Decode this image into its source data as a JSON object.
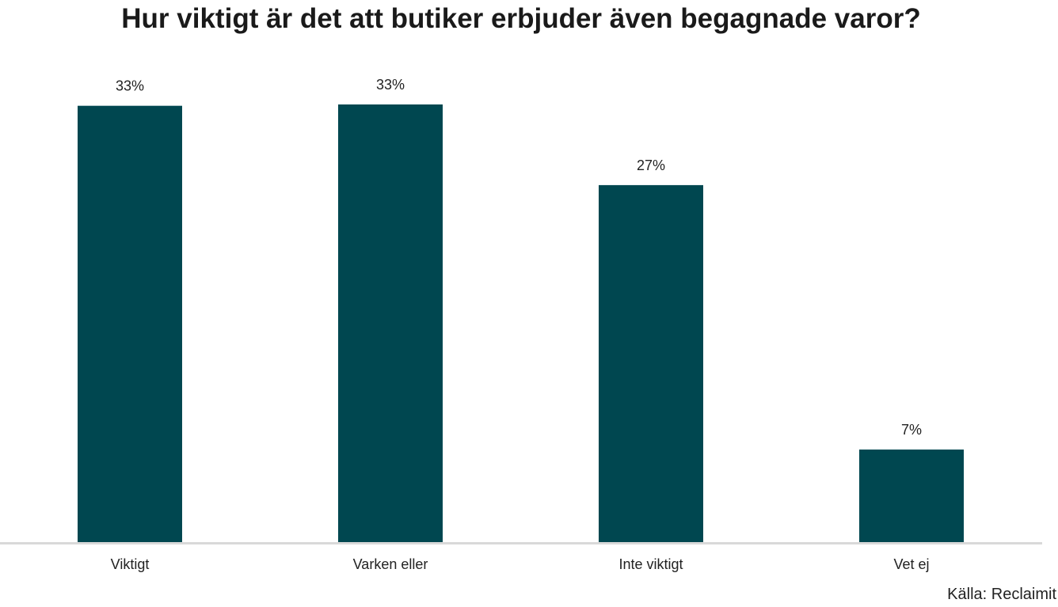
{
  "chart_data": {
    "type": "bar",
    "title": "Hur viktigt är det att butiker erbjuder även begagnade varor?",
    "categories": [
      "Viktigt",
      "Varken eller",
      "Inte viktigt",
      "Vet ej"
    ],
    "values": [
      33,
      33.1,
      27,
      7
    ],
    "value_labels": [
      "33%",
      "33%",
      "27%",
      "7%"
    ],
    "ylim": [
      0,
      33.1
    ],
    "grid": false,
    "legend": "none",
    "bar_color": "#004750",
    "axis_color": "#d9d9d9",
    "source": "Källa: Reclaimit"
  }
}
